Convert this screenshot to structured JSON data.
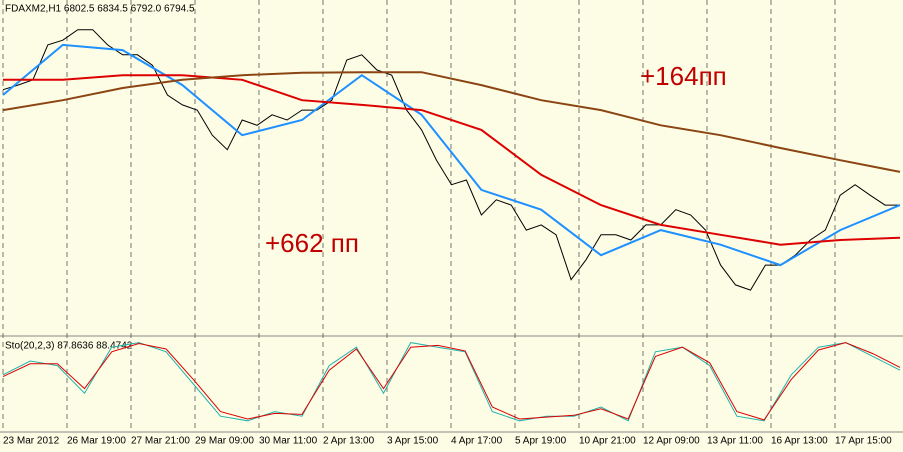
{
  "chart_data": {
    "type": "line",
    "title": "FDAXM2,H1  6802.5 6834.5 6792.0 6794.5",
    "indicator_label": "Sto(20,2,3) 87.8636 88.4742",
    "annotations": [
      "+164пп",
      "+662 пп"
    ],
    "xticks": [
      "23 Mar 2012",
      "26 Mar 19:00",
      "27 Mar 21:00",
      "29 Mar 09:00",
      "30 Mar 11:00",
      "2 Apr 13:00",
      "3 Apr 15:00",
      "4 Apr 17:00",
      "5 Apr 19:00",
      "10 Apr 21:00",
      "12 Apr 09:00",
      "13 Apr 11:00",
      "16 Apr 13:00",
      "17 Apr 15:00"
    ],
    "ylim": [
      6560,
      7135
    ],
    "series": [
      {
        "color": "#000000",
        "values": [
          6981,
          6989,
          6998,
          7058,
          7066,
          7084,
          7084,
          7058,
          7041,
          7041,
          7023,
          6972,
          6955,
          6946,
          6903,
          6878,
          6929,
          6920,
          6938,
          6929,
          6946,
          6946,
          6963,
          7032,
          7041,
          7015,
          7006,
          6946,
          6912,
          6860,
          6818,
          6826,
          6766,
          6792,
          6783,
          6740,
          6749,
          6732,
          6655,
          6689,
          6732,
          6732,
          6723,
          6749,
          6749,
          6775,
          6766,
          6740,
          6680,
          6646,
          6637,
          6680,
          6680,
          6697,
          6723,
          6740,
          6800,
          6818,
          6800,
          6783,
          6783
        ]
      },
      {
        "color": "#1e90ff",
        "values": [
          6972,
          7058,
          7049,
          6989,
          6903,
          6929,
          7006,
          6938,
          6809,
          6775,
          6697,
          6740,
          6715,
          6680,
          6740,
          6783
        ]
      },
      {
        "color": "#dd0000",
        "values": [
          6998,
          6998,
          7006,
          7006,
          6998,
          6963,
          6955,
          6946,
          6912,
          6835,
          6783,
          6749,
          6732,
          6715,
          6723,
          6727
        ]
      },
      {
        "color": "#8b4513",
        "values": [
          6946,
          6963,
          6984,
          6998,
          7006,
          7010,
          7011,
          7011,
          6989,
          6963,
          6946,
          6920,
          6903,
          6881,
          6860,
          6840
        ]
      }
    ],
    "stochastic": {
      "ylim": [
        0,
        100
      ],
      "series": [
        {
          "color": "#20b2aa",
          "values": [
            60,
            75,
            70,
            40,
            90,
            95,
            85,
            50,
            15,
            10,
            20,
            15,
            70,
            90,
            40,
            95,
            90,
            85,
            20,
            10,
            15,
            15,
            25,
            10,
            85,
            90,
            70,
            15,
            10,
            60,
            90,
            95,
            80,
            65
          ]
        },
        {
          "color": "#dd0000",
          "values": [
            58,
            72,
            72,
            45,
            85,
            94,
            88,
            55,
            20,
            12,
            18,
            17,
            65,
            88,
            45,
            90,
            92,
            86,
            25,
            12,
            14,
            16,
            23,
            12,
            80,
            90,
            73,
            20,
            11,
            55,
            87,
            95,
            83,
            68
          ]
        }
      ]
    }
  }
}
